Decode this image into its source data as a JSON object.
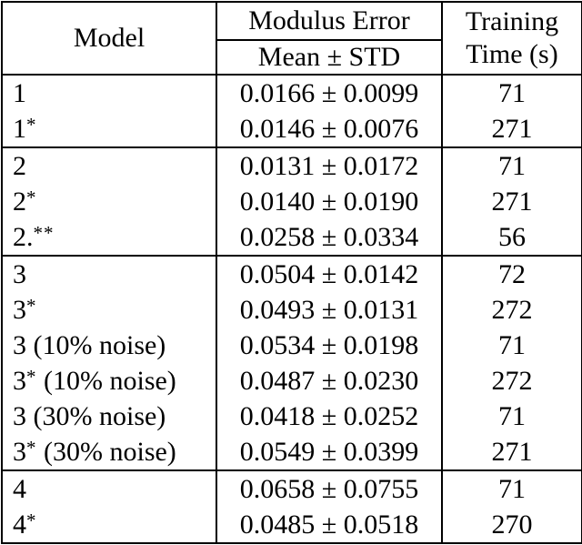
{
  "table": {
    "title_semantic": "model-modulus-error-training-time-table",
    "colors": {
      "background": "#ffffff",
      "text": "#000000",
      "rules": "#000000"
    },
    "header": {
      "model": "Model",
      "modulus_error": "Modulus Error",
      "mean_std": "Mean ± STD",
      "training_line1": "Training",
      "training_line2": "Time (s)"
    },
    "rows": [
      {
        "model_base": "1",
        "model_sup": "",
        "model_suffix": "",
        "error": "0.0166 ± 0.0099",
        "time": "71"
      },
      {
        "model_base": "1",
        "model_sup": "*",
        "model_suffix": "",
        "error": "0.0146 ± 0.0076",
        "time": "271"
      },
      {
        "model_base": "2",
        "model_sup": "",
        "model_suffix": "",
        "error": "0.0131 ± 0.0172",
        "time": "71"
      },
      {
        "model_base": "2",
        "model_sup": "*",
        "model_suffix": "",
        "error": "0.0140 ± 0.0190",
        "time": "271"
      },
      {
        "model_base": "2.",
        "model_sup": "**",
        "model_suffix": "",
        "error": "0.0258 ± 0.0334",
        "time": "56"
      },
      {
        "model_base": "3",
        "model_sup": "",
        "model_suffix": "",
        "error": "0.0504 ± 0.0142",
        "time": "72"
      },
      {
        "model_base": "3",
        "model_sup": "*",
        "model_suffix": "",
        "error": "0.0493 ± 0.0131",
        "time": "272"
      },
      {
        "model_base": "3",
        "model_sup": "",
        "model_suffix": " (10% noise)",
        "error": "0.0534 ± 0.0198",
        "time": "71"
      },
      {
        "model_base": "3",
        "model_sup": "*",
        "model_suffix": " (10% noise)",
        "error": "0.0487 ± 0.0230",
        "time": "272"
      },
      {
        "model_base": "3",
        "model_sup": "",
        "model_suffix": " (30% noise)",
        "error": "0.0418 ± 0.0252",
        "time": "71"
      },
      {
        "model_base": "3",
        "model_sup": "*",
        "model_suffix": " (30% noise)",
        "error": "0.0549 ± 0.0399",
        "time": "271"
      },
      {
        "model_base": "4",
        "model_sup": "",
        "model_suffix": "",
        "error": "0.0658 ± 0.0755",
        "time": "71"
      },
      {
        "model_base": "4",
        "model_sup": "*",
        "model_suffix": "",
        "error": "0.0485 ± 0.0518",
        "time": "270"
      }
    ]
  }
}
